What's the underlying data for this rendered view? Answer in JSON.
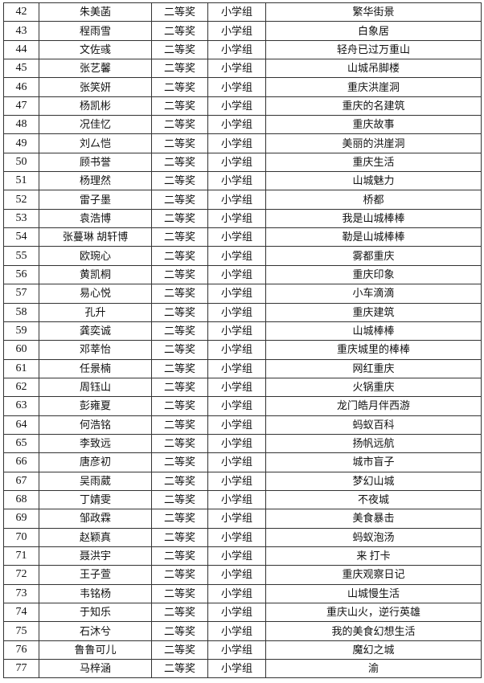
{
  "table": {
    "rows": [
      {
        "no": "42",
        "name": "朱美菡",
        "award": "二等奖",
        "group": "小学组",
        "title": "繁华街景"
      },
      {
        "no": "43",
        "name": "程雨雪",
        "award": "二等奖",
        "group": "小学组",
        "title": "白象居"
      },
      {
        "no": "44",
        "name": "文佐彧",
        "award": "二等奖",
        "group": "小学组",
        "title": "轻舟已过万重山"
      },
      {
        "no": "45",
        "name": "张艺馨",
        "award": "二等奖",
        "group": "小学组",
        "title": "山城吊脚楼"
      },
      {
        "no": "46",
        "name": "张笑妍",
        "award": "二等奖",
        "group": "小学组",
        "title": "重庆洪崖洞"
      },
      {
        "no": "47",
        "name": "杨凯彬",
        "award": "二等奖",
        "group": "小学组",
        "title": "重庆的名建筑"
      },
      {
        "no": "48",
        "name": "况佳忆",
        "award": "二等奖",
        "group": "小学组",
        "title": "重庆故事"
      },
      {
        "no": "49",
        "name": "刘厶恺",
        "award": "二等奖",
        "group": "小学组",
        "title": "美丽的洪崖洞"
      },
      {
        "no": "50",
        "name": "顾书誉",
        "award": "二等奖",
        "group": "小学组",
        "title": "重庆生活"
      },
      {
        "no": "51",
        "name": "杨理然",
        "award": "二等奖",
        "group": "小学组",
        "title": "山城魅力"
      },
      {
        "no": "52",
        "name": "雷子墨",
        "award": "二等奖",
        "group": "小学组",
        "title": "桥都"
      },
      {
        "no": "53",
        "name": "袁浩博",
        "award": "二等奖",
        "group": "小学组",
        "title": "我是山城棒棒"
      },
      {
        "no": "54",
        "name": "张蔓琳 胡轩博",
        "award": "二等奖",
        "group": "小学组",
        "title": "勒是山城棒棒"
      },
      {
        "no": "55",
        "name": "欧琬心",
        "award": "二等奖",
        "group": "小学组",
        "title": "雾都重庆"
      },
      {
        "no": "56",
        "name": "黄凯桐",
        "award": "二等奖",
        "group": "小学组",
        "title": "重庆印象"
      },
      {
        "no": "57",
        "name": "易心悦",
        "award": "二等奖",
        "group": "小学组",
        "title": "小车滴滴"
      },
      {
        "no": "58",
        "name": "孔升",
        "award": "二等奖",
        "group": "小学组",
        "title": "重庆建筑"
      },
      {
        "no": "59",
        "name": "龚奕诚",
        "award": "二等奖",
        "group": "小学组",
        "title": "山城棒棒"
      },
      {
        "no": "60",
        "name": "邓莘怡",
        "award": "二等奖",
        "group": "小学组",
        "title": "重庆城里的棒棒"
      },
      {
        "no": "61",
        "name": "任景楠",
        "award": "二等奖",
        "group": "小学组",
        "title": "网红重庆"
      },
      {
        "no": "62",
        "name": "周钰山",
        "award": "二等奖",
        "group": "小学组",
        "title": "火锅重庆"
      },
      {
        "no": "63",
        "name": "彭雍夏",
        "award": "二等奖",
        "group": "小学组",
        "title": "龙门皓月伴西游"
      },
      {
        "no": "64",
        "name": "何浩铭",
        "award": "二等奖",
        "group": "小学组",
        "title": "蚂蚁百科"
      },
      {
        "no": "65",
        "name": "李致远",
        "award": "二等奖",
        "group": "小学组",
        "title": "扬帆远航"
      },
      {
        "no": "66",
        "name": "唐彦初",
        "award": "二等奖",
        "group": "小学组",
        "title": "城市盲子"
      },
      {
        "no": "67",
        "name": "吴雨葳",
        "award": "二等奖",
        "group": "小学组",
        "title": "梦幻山城"
      },
      {
        "no": "68",
        "name": "丁婧雯",
        "award": "二等奖",
        "group": "小学组",
        "title": "不夜城"
      },
      {
        "no": "69",
        "name": "邹政霖",
        "award": "二等奖",
        "group": "小学组",
        "title": "美食暴击"
      },
      {
        "no": "70",
        "name": "赵颖真",
        "award": "二等奖",
        "group": "小学组",
        "title": "蚂蚁泡汤"
      },
      {
        "no": "71",
        "name": "聂洪宇",
        "award": "二等奖",
        "group": "小学组",
        "title": "来 打卡"
      },
      {
        "no": "72",
        "name": "王子萱",
        "award": "二等奖",
        "group": "小学组",
        "title": "重庆观察日记"
      },
      {
        "no": "73",
        "name": "韦铭杨",
        "award": "二等奖",
        "group": "小学组",
        "title": "山城慢生活"
      },
      {
        "no": "74",
        "name": "于知乐",
        "award": "二等奖",
        "group": "小学组",
        "title": "重庆山火，逆行英雄"
      },
      {
        "no": "75",
        "name": "石沐兮",
        "award": "二等奖",
        "group": "小学组",
        "title": "我的美食幻想生活"
      },
      {
        "no": "76",
        "name": "鲁鲁可儿",
        "award": "二等奖",
        "group": "小学组",
        "title": "魔幻之城"
      },
      {
        "no": "77",
        "name": "马梓涵",
        "award": "二等奖",
        "group": "小学组",
        "title": "渝"
      }
    ]
  }
}
